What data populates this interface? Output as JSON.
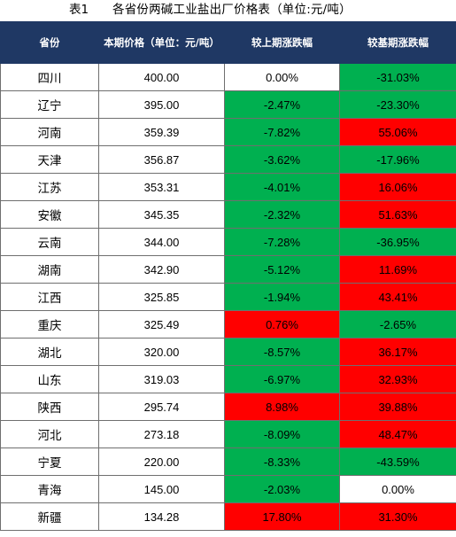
{
  "title": {
    "number": "表1",
    "text": "各省份两碱工业盐出厂价格表（单位:元/吨）"
  },
  "headers": {
    "province": "省份",
    "price": "本期价格（单位：元/吨）",
    "mom": "较上期涨跌幅",
    "yoy": "较基期涨跌幅"
  },
  "colors": {
    "header_bg": "#1f3864",
    "positive": "#ff0000",
    "negative": "#00b050",
    "neutral": "#ffffff"
  },
  "rows": [
    {
      "province": "四川",
      "price": "400.00",
      "mom": "0.00%",
      "mom_tone": "white",
      "yoy": "-31.03%",
      "yoy_tone": "green"
    },
    {
      "province": "辽宁",
      "price": "395.00",
      "mom": "-2.47%",
      "mom_tone": "green",
      "yoy": "-23.30%",
      "yoy_tone": "green"
    },
    {
      "province": "河南",
      "price": "359.39",
      "mom": "-7.82%",
      "mom_tone": "green",
      "yoy": "55.06%",
      "yoy_tone": "red"
    },
    {
      "province": "天津",
      "price": "356.87",
      "mom": "-3.62%",
      "mom_tone": "green",
      "yoy": "-17.96%",
      "yoy_tone": "green"
    },
    {
      "province": "江苏",
      "price": "353.31",
      "mom": "-4.01%",
      "mom_tone": "green",
      "yoy": "16.06%",
      "yoy_tone": "red"
    },
    {
      "province": "安徽",
      "price": "345.35",
      "mom": "-2.32%",
      "mom_tone": "green",
      "yoy": "51.63%",
      "yoy_tone": "red"
    },
    {
      "province": "云南",
      "price": "344.00",
      "mom": "-7.28%",
      "mom_tone": "green",
      "yoy": "-36.95%",
      "yoy_tone": "green"
    },
    {
      "province": "湖南",
      "price": "342.90",
      "mom": "-5.12%",
      "mom_tone": "green",
      "yoy": "11.69%",
      "yoy_tone": "red"
    },
    {
      "province": "江西",
      "price": "325.85",
      "mom": "-1.94%",
      "mom_tone": "green",
      "yoy": "43.41%",
      "yoy_tone": "red"
    },
    {
      "province": "重庆",
      "price": "325.49",
      "mom": "0.76%",
      "mom_tone": "red",
      "yoy": "-2.65%",
      "yoy_tone": "green"
    },
    {
      "province": "湖北",
      "price": "320.00",
      "mom": "-8.57%",
      "mom_tone": "green",
      "yoy": "36.17%",
      "yoy_tone": "red"
    },
    {
      "province": "山东",
      "price": "319.03",
      "mom": "-6.97%",
      "mom_tone": "green",
      "yoy": "32.93%",
      "yoy_tone": "red"
    },
    {
      "province": "陕西",
      "price": "295.74",
      "mom": "8.98%",
      "mom_tone": "red",
      "yoy": "39.88%",
      "yoy_tone": "red"
    },
    {
      "province": "河北",
      "price": "273.18",
      "mom": "-8.09%",
      "mom_tone": "green",
      "yoy": "48.47%",
      "yoy_tone": "red"
    },
    {
      "province": "宁夏",
      "price": "220.00",
      "mom": "-8.33%",
      "mom_tone": "green",
      "yoy": "-43.59%",
      "yoy_tone": "green"
    },
    {
      "province": "青海",
      "price": "145.00",
      "mom": "-2.03%",
      "mom_tone": "green",
      "yoy": "0.00%",
      "yoy_tone": "white"
    },
    {
      "province": "新疆",
      "price": "134.28",
      "mom": "17.80%",
      "mom_tone": "red",
      "yoy": "31.30%",
      "yoy_tone": "red"
    }
  ]
}
